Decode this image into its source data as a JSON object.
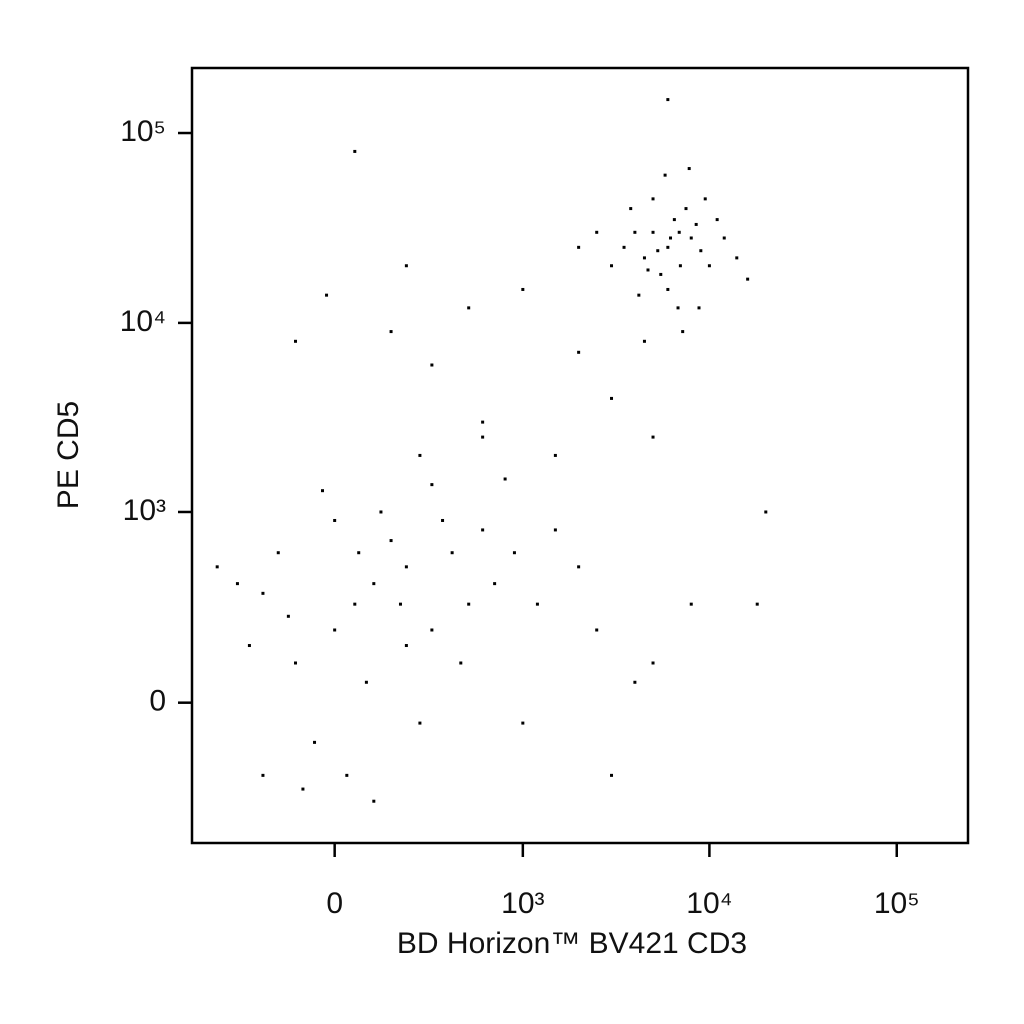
{
  "chart_data": {
    "type": "scatter",
    "xscale": "biexponential",
    "yscale": "biexponential",
    "x_label": "BD Horizon™ BV421 CD3",
    "y_label": "PE CD5",
    "color": "#000000",
    "xlim": [
      -560,
      240000
    ],
    "ylim": [
      -530,
      220000
    ],
    "xticks": [
      0,
      {
        "value": 1000,
        "label": "10³"
      },
      {
        "value": 10000,
        "label": "10⁴"
      },
      {
        "value": 100000,
        "label": "10⁵"
      }
    ],
    "yticks": [
      0,
      {
        "value": 1000,
        "label": "10³"
      },
      {
        "value": 10000,
        "label": "10⁴"
      },
      {
        "value": 100000,
        "label": "10⁵"
      }
    ],
    "points": [
      [
        6000,
        25000
      ],
      [
        5000,
        30000
      ],
      [
        7000,
        20000
      ],
      [
        4500,
        22000
      ],
      [
        8000,
        28000
      ],
      [
        6500,
        35000
      ],
      [
        5500,
        18000
      ],
      [
        9000,
        24000
      ],
      [
        4000,
        30000
      ],
      [
        7500,
        40000
      ],
      [
        3500,
        25000
      ],
      [
        10000,
        20000
      ],
      [
        6000,
        15000
      ],
      [
        5000,
        45000
      ],
      [
        8500,
        33000
      ],
      [
        3000,
        20000
      ],
      [
        12000,
        28000
      ],
      [
        6800,
        12000
      ],
      [
        4200,
        14000
      ],
      [
        9500,
        45000
      ],
      [
        2500,
        30000
      ],
      [
        14000,
        22000
      ],
      [
        5800,
        60000
      ],
      [
        7200,
        9000
      ],
      [
        3800,
        40000
      ],
      [
        11000,
        35000
      ],
      [
        6200,
        28000
      ],
      [
        5300,
        24000
      ],
      [
        6900,
        30000
      ],
      [
        4700,
        19000
      ],
      [
        2000,
        25000
      ],
      [
        16000,
        17000
      ],
      [
        7800,
        65000
      ],
      [
        8800,
        12000
      ],
      [
        4500,
        8000
      ],
      [
        6000,
        150000
      ],
      [
        50,
        300
      ],
      [
        0,
        200
      ],
      [
        100,
        400
      ],
      [
        -100,
        100
      ],
      [
        200,
        500
      ],
      [
        -200,
        350
      ],
      [
        300,
        200
      ],
      [
        150,
        700
      ],
      [
        -50,
        -100
      ],
      [
        80,
        50
      ],
      [
        400,
        600
      ],
      [
        -150,
        600
      ],
      [
        250,
        -50
      ],
      [
        0,
        900
      ],
      [
        500,
        300
      ],
      [
        -250,
        150
      ],
      [
        120,
        1000
      ],
      [
        350,
        900
      ],
      [
        600,
        800
      ],
      [
        -80,
        -250
      ],
      [
        30,
        -200
      ],
      [
        700,
        400
      ],
      [
        200,
        150
      ],
      [
        -300,
        400
      ],
      [
        60,
        600
      ],
      [
        180,
        300
      ],
      [
        -120,
        250
      ],
      [
        450,
        100
      ],
      [
        900,
        600
      ],
      [
        1200,
        300
      ],
      [
        1500,
        800
      ],
      [
        2000,
        500
      ],
      [
        800,
        1500
      ],
      [
        300,
        1400
      ],
      [
        -30,
        1300
      ],
      [
        2500,
        200
      ],
      [
        3000,
        -200
      ],
      [
        1000,
        -50
      ],
      [
        4000,
        50
      ],
      [
        5000,
        100
      ],
      [
        -200,
        -200
      ],
      [
        100,
        -300
      ],
      [
        -400,
        500
      ],
      [
        250,
        2000
      ],
      [
        600,
        2500
      ],
      [
        20000,
        1000
      ],
      [
        18000,
        300
      ],
      [
        8000,
        300
      ],
      [
        150,
        9000
      ],
      [
        300,
        6000
      ],
      [
        -100,
        8000
      ],
      [
        500,
        12000
      ],
      [
        200,
        20000
      ],
      [
        1000,
        15000
      ],
      [
        2000,
        7000
      ],
      [
        600,
        3000
      ],
      [
        1500,
        2000
      ],
      [
        3000,
        4000
      ],
      [
        5000,
        2500
      ],
      [
        50,
        80000
      ],
      [
        -20,
        14000
      ]
    ]
  }
}
